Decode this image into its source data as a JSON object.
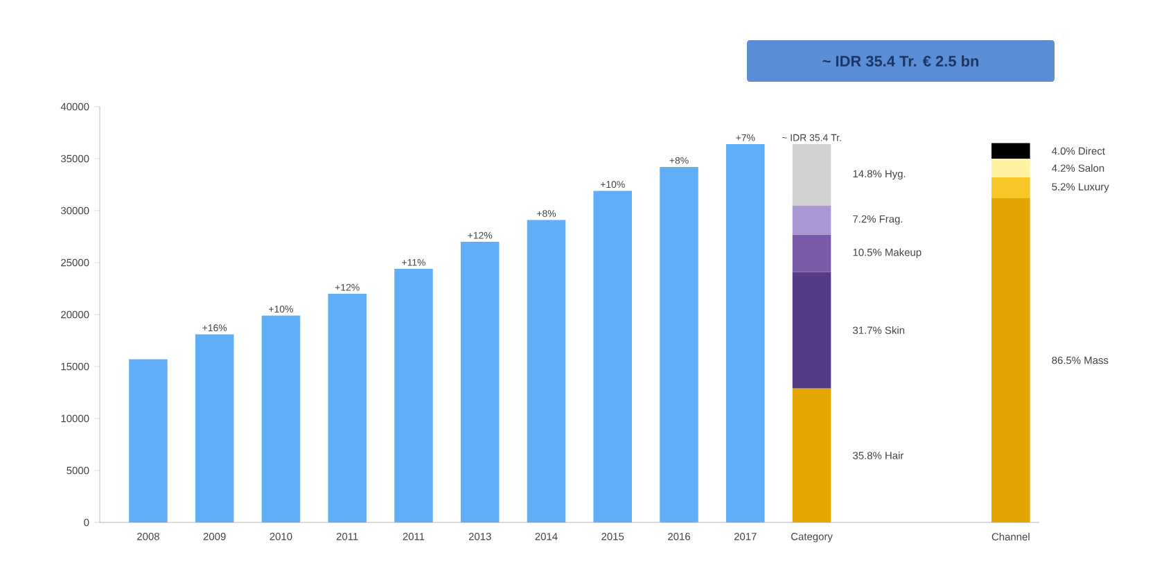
{
  "chart_data": {
    "type": "bar",
    "title": "~ IDR 35.4 Tr. € 2.5 bn",
    "annotations": [
      {
        "text": "~ IDR 35.4 Tr.",
        "x": "Category",
        "y": 36400
      },
      "+16%",
      "+10%",
      "+12%",
      "+11%",
      "+12%",
      "+8%",
      "+10%",
      "+8%",
      "+7%"
    ],
    "categories": [
      "2008",
      "2009",
      "2010",
      "2011",
      "2011",
      "2013",
      "2014",
      "2015",
      "2016",
      "2017",
      "Category",
      null,
      null,
      "Channel"
    ],
    "stacked": true,
    "ylim": [
      0,
      40000
    ],
    "yticks": [
      0,
      5000,
      10000,
      15000,
      20000,
      25000,
      30000,
      35000,
      40000
    ],
    "series": [
      {
        "color": "#60aef7",
        "values": [
          15700,
          18100,
          19900,
          22000,
          24400,
          27000,
          29100,
          31900,
          34200,
          36400,
          null,
          null,
          null,
          null
        ]
      },
      {
        "name": "35.8% Hair",
        "color": "#e6a800",
        "values": [
          null,
          null,
          null,
          null,
          null,
          null,
          null,
          null,
          null,
          null,
          12900,
          null,
          null,
          null
        ]
      },
      {
        "name": "31.7% Skin",
        "color": "#553b85",
        "values": [
          null,
          null,
          null,
          null,
          null,
          null,
          null,
          null,
          null,
          null,
          11200,
          null,
          null,
          null
        ]
      },
      {
        "name": "10.5% Makeup",
        "color": "#7a5ba8",
        "values": [
          null,
          null,
          null,
          null,
          null,
          null,
          null,
          null,
          null,
          null,
          3600,
          null,
          null,
          null
        ]
      },
      {
        "name": "7.2% Frag.",
        "color": "#ab97d3",
        "values": [
          null,
          null,
          null,
          null,
          null,
          null,
          null,
          null,
          null,
          null,
          2800,
          null,
          null,
          null
        ]
      },
      {
        "name": "14.8% Hyg.",
        "color": "#d0d0d0",
        "values": [
          null,
          null,
          null,
          null,
          null,
          null,
          null,
          null,
          null,
          null,
          5900,
          null,
          null,
          null
        ]
      },
      {
        "name": "86.5% Mass",
        "color": "#e3a500",
        "values": [
          null,
          null,
          null,
          null,
          null,
          null,
          null,
          null,
          null,
          null,
          null,
          null,
          null,
          31200
        ]
      },
      {
        "name": "5.2% Luxury",
        "color": "#f8c628",
        "values": [
          null,
          null,
          null,
          null,
          null,
          null,
          null,
          null,
          null,
          null,
          null,
          null,
          null,
          2000
        ]
      },
      {
        "name": "4.2% Salon",
        "color": "#fff2a0",
        "values": [
          null,
          null,
          null,
          null,
          null,
          null,
          null,
          null,
          null,
          null,
          null,
          null,
          null,
          1800
        ]
      },
      {
        "name": "4.0% Direct",
        "color": "#000000",
        "values": [
          null,
          null,
          null,
          null,
          null,
          null,
          null,
          null,
          null,
          null,
          null,
          null,
          null,
          1500
        ]
      }
    ]
  }
}
